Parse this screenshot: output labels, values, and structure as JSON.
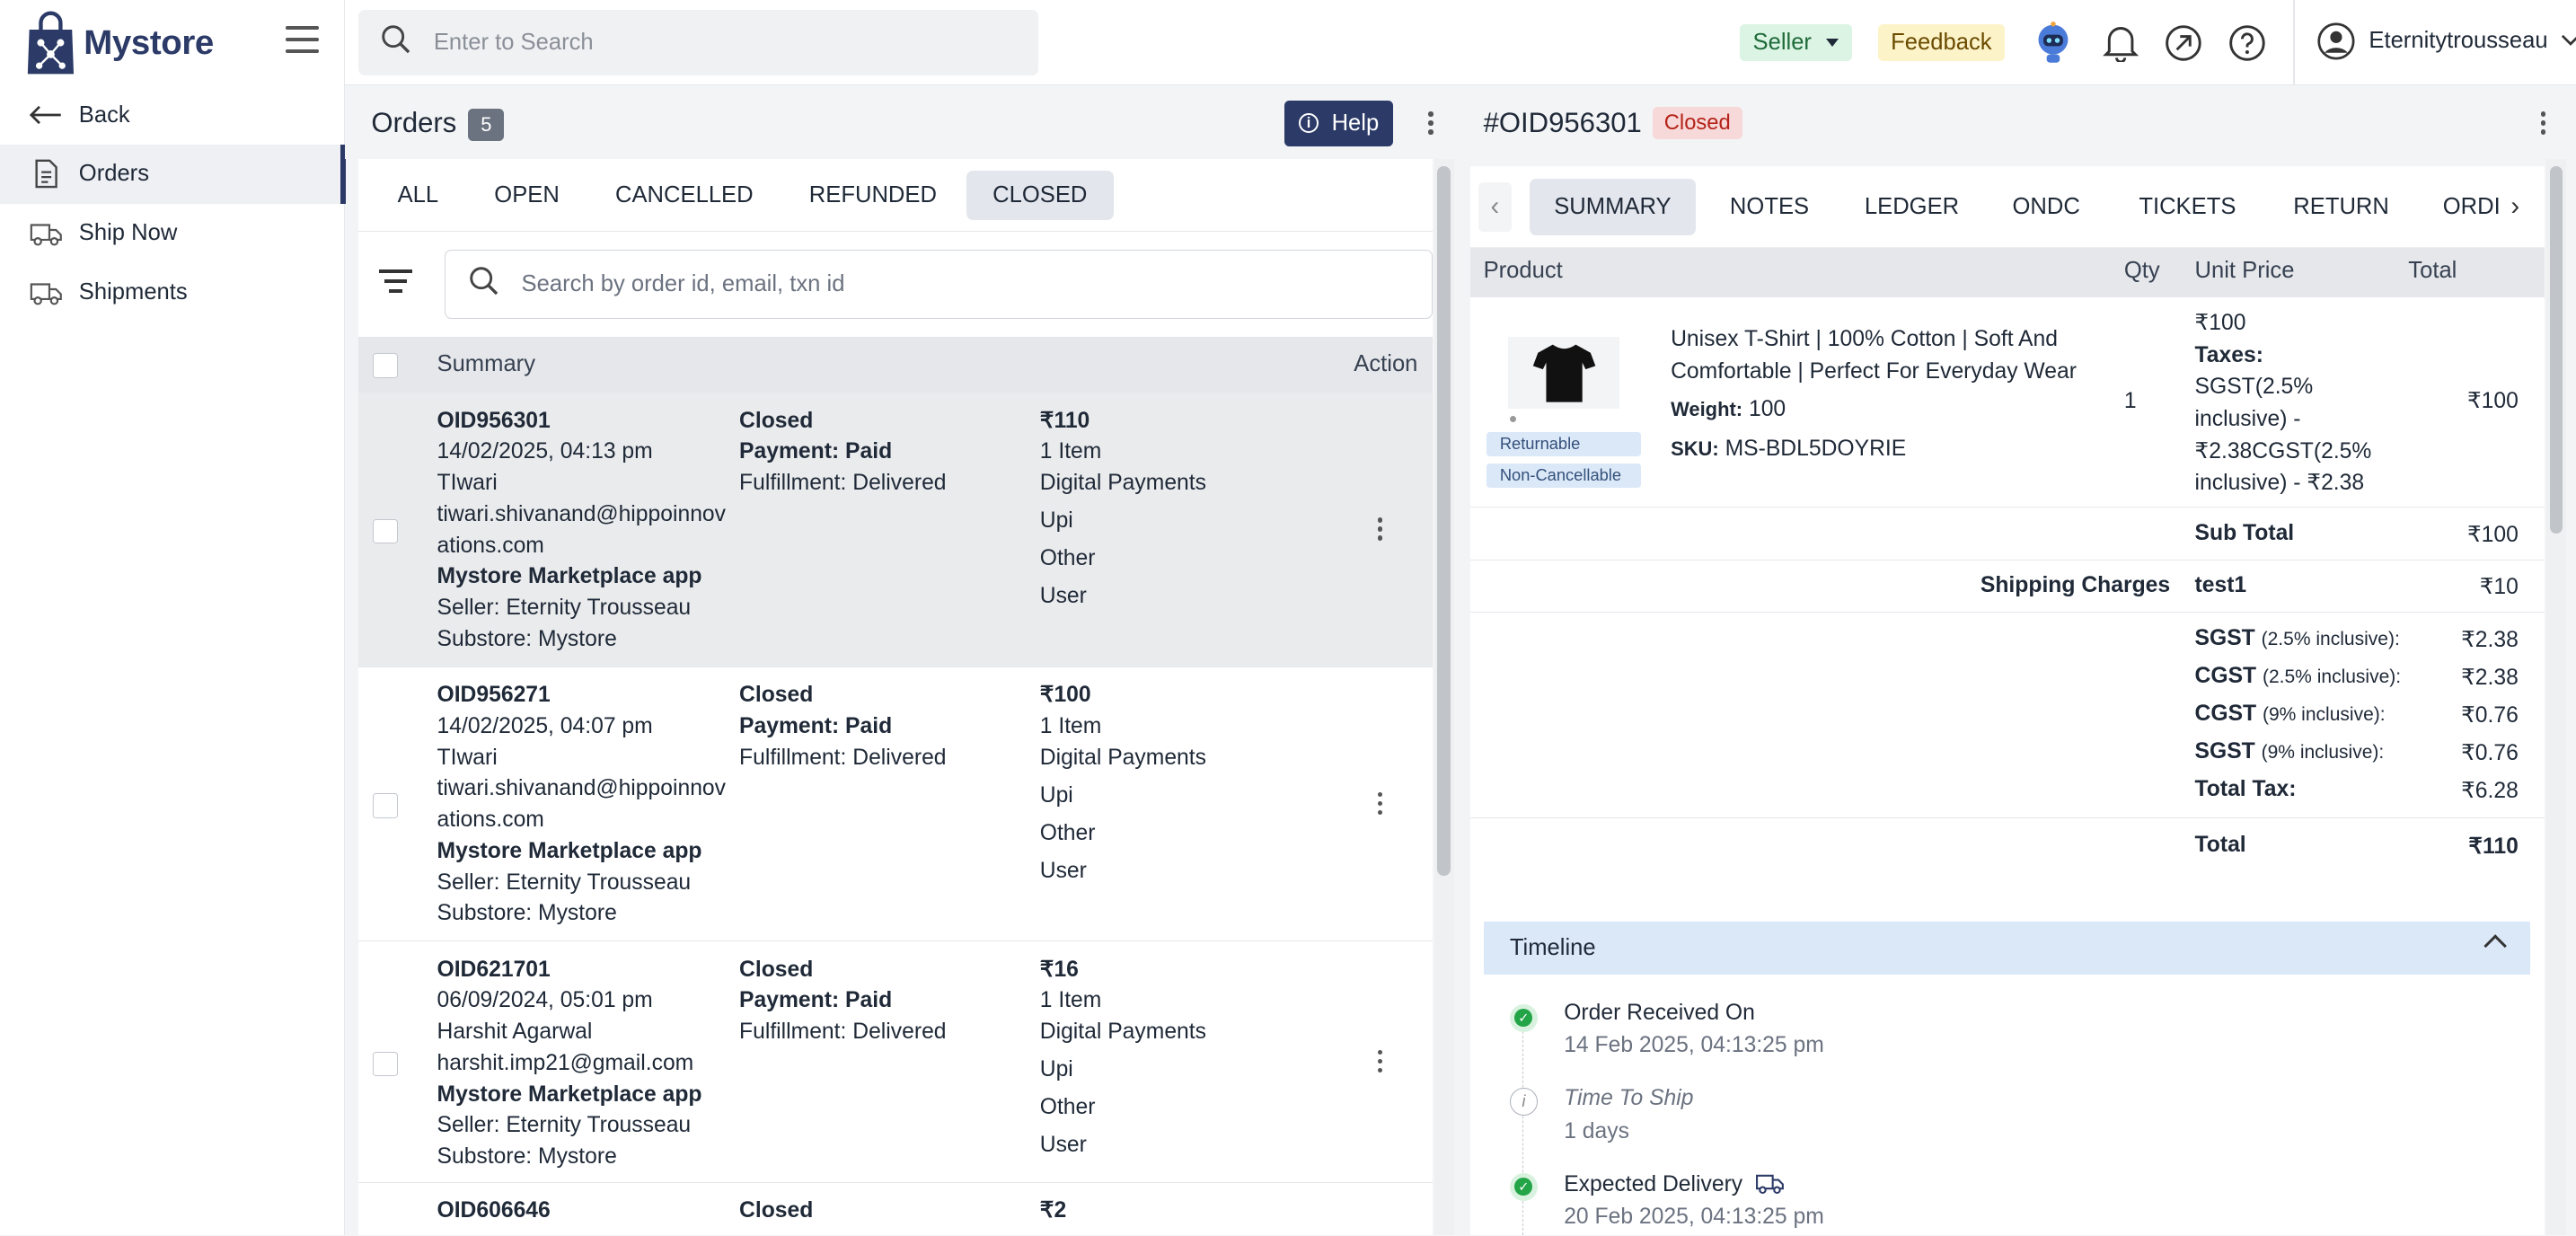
{
  "app": {
    "name": "Mystore"
  },
  "sidebar": {
    "items": [
      {
        "label": "Back",
        "icon": "arrow-left-icon"
      },
      {
        "label": "Orders",
        "icon": "document-icon",
        "active": true
      },
      {
        "label": "Ship Now",
        "icon": "truck-icon"
      },
      {
        "label": "Shipments",
        "icon": "truck-icon"
      }
    ]
  },
  "topbar": {
    "search_placeholder": "Enter to Search",
    "seller_label": "Seller",
    "feedback_label": "Feedback",
    "user_name": "Eternitytrousseau"
  },
  "orders": {
    "title": "Orders",
    "count": "5",
    "help_label": "Help",
    "tabs": [
      "ALL",
      "OPEN",
      "CANCELLED",
      "REFUNDED",
      "CLOSED"
    ],
    "active_tab": "CLOSED",
    "search_placeholder": "Search by order id, email, txn id",
    "header": {
      "summary": "Summary",
      "action": "Action"
    },
    "rows": [
      {
        "id": "OID956301",
        "date": "14/02/2025, 04:13 pm",
        "name": "TIwari",
        "email": "tiwari.shivanand@hippoinnovations.com",
        "channel": "Mystore Marketplace app",
        "seller": "Seller: Eternity Trousseau",
        "substore": "Substore: Mystore",
        "status": "Closed",
        "payment": "Payment: Paid",
        "fulfillment": "Fulfillment: Delivered",
        "amount": "₹110",
        "items": "1 Item",
        "method": "Digital Payments",
        "mode": "Upi",
        "other": "Other",
        "by": "User"
      },
      {
        "id": "OID956271",
        "date": "14/02/2025, 04:07 pm",
        "name": "TIwari",
        "email": "tiwari.shivanand@hippoinnovations.com",
        "channel": "Mystore Marketplace app",
        "seller": "Seller: Eternity Trousseau",
        "substore": "Substore: Mystore",
        "status": "Closed",
        "payment": "Payment: Paid",
        "fulfillment": "Fulfillment: Delivered",
        "amount": "₹100",
        "items": "1 Item",
        "method": "Digital Payments",
        "mode": "Upi",
        "other": "Other",
        "by": "User"
      },
      {
        "id": "OID621701",
        "date": "06/09/2024, 05:01 pm",
        "name": "Harshit Agarwal",
        "email": "harshit.imp21@gmail.com",
        "channel": "Mystore Marketplace app",
        "seller": "Seller: Eternity Trousseau",
        "substore": "Substore: Mystore",
        "status": "Closed",
        "payment": "Payment: Paid",
        "fulfillment": "Fulfillment: Delivered",
        "amount": "₹16",
        "items": "1 Item",
        "method": "Digital Payments",
        "mode": "Upi",
        "other": "Other",
        "by": "User"
      },
      {
        "id": "OID606646",
        "status": "Closed",
        "amount": "₹2"
      }
    ]
  },
  "detail": {
    "order_id": "#OID956301",
    "status": "Closed",
    "tabs": [
      "SUMMARY",
      "NOTES",
      "LEDGER",
      "ONDC",
      "TICKETS",
      "RETURN",
      "ORDI"
    ],
    "active_tab": "SUMMARY",
    "table_header": {
      "product": "Product",
      "qty": "Qty",
      "unit_price": "Unit Price",
      "total": "Total"
    },
    "product": {
      "name": "Unisex T-Shirt | 100% Cotton | Soft And Comfortable | Perfect For Everyday Wear",
      "weight_label": "Weight:",
      "weight": "100",
      "sku_label": "SKU:",
      "sku": "MS-BDL5DOYRIE",
      "tags": [
        "Returnable",
        "Non-Cancellable"
      ],
      "qty": "1",
      "unit_price": "₹100",
      "taxes_label": "Taxes:",
      "taxes_text": "SGST(2.5% inclusive) - ₹2.38CGST(2.5% inclusive) - ₹2.38",
      "total": "₹100"
    },
    "sub_total_label": "Sub Total",
    "sub_total": "₹100",
    "shipping_label": "Shipping Charges",
    "shipping_method": "test1",
    "shipping_amount": "₹10",
    "tax_lines": [
      {
        "name": "SGST",
        "note": "(2.5% inclusive):",
        "value": "₹2.38"
      },
      {
        "name": "CGST",
        "note": "(2.5% inclusive):",
        "value": "₹2.38"
      },
      {
        "name": "CGST",
        "note": "(9% inclusive):",
        "value": "₹0.76"
      },
      {
        "name": "SGST",
        "note": "(9% inclusive):",
        "value": "₹0.76"
      },
      {
        "name": "Total Tax:",
        "note": "",
        "value": "₹6.28"
      }
    ],
    "total_label": "Total",
    "total": "₹110",
    "timeline": {
      "title": "Timeline",
      "events": [
        {
          "title": "Order Received On",
          "sub": "14 Feb 2025, 04:13:25 pm",
          "kind": "done"
        },
        {
          "title": "Time To Ship",
          "sub": "1 days",
          "kind": "info"
        },
        {
          "title": "Expected Delivery",
          "sub": "20 Feb 2025, 04:13:25 pm",
          "kind": "done"
        }
      ]
    }
  }
}
